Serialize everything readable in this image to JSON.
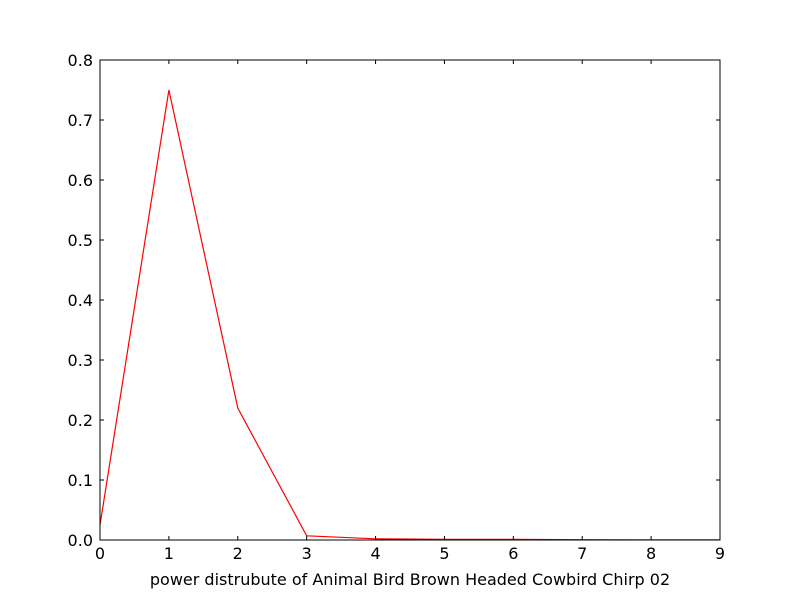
{
  "chart_data": {
    "type": "line",
    "title": "",
    "xlabel": "power distrubute of Animal Bird Brown Headed Cowbird Chirp 02",
    "ylabel": "",
    "xlim": [
      0,
      9
    ],
    "ylim": [
      0,
      0.8
    ],
    "xticks": [
      0,
      1,
      2,
      3,
      4,
      5,
      6,
      7,
      8,
      9
    ],
    "xtick_labels": [
      "0",
      "1",
      "2",
      "3",
      "4",
      "5",
      "6",
      "7",
      "8",
      "9"
    ],
    "yticks": [
      0,
      0.1,
      0.2,
      0.3,
      0.4,
      0.5,
      0.6,
      0.7,
      0.8
    ],
    "ytick_labels": [
      "0.0",
      "0.1",
      "0.2",
      "0.3",
      "0.4",
      "0.5",
      "0.6",
      "0.7",
      "0.8"
    ],
    "grid": false,
    "series": [
      {
        "color": "#ff0000",
        "x": [
          0,
          1,
          2,
          3,
          4,
          5,
          6,
          7,
          8,
          9
        ],
        "y": [
          0.025,
          0.75,
          0.22,
          0.007,
          0.002,
          0.001,
          0.001,
          0.0005,
          0.0003,
          0.0002
        ]
      }
    ]
  }
}
